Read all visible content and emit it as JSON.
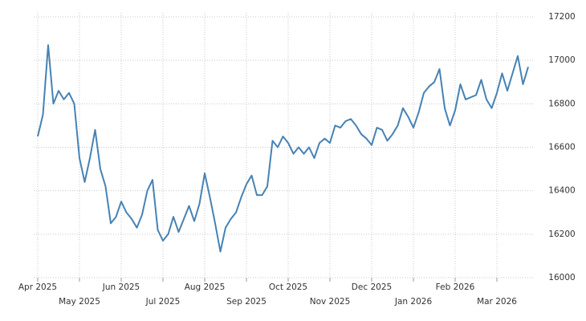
{
  "chart_data": {
    "type": "line",
    "color": "#4682b4",
    "grid": true,
    "categories": [
      "Apr 2025",
      null,
      null,
      null,
      null,
      null,
      null,
      null,
      "May 2025",
      null,
      null,
      null,
      null,
      null,
      null,
      null,
      "Jun 2025",
      null,
      null,
      null,
      null,
      null,
      null,
      null,
      "Jul 2025",
      null,
      null,
      null,
      null,
      null,
      null,
      null,
      "Aug 2025",
      null,
      null,
      null,
      null,
      null,
      null,
      null,
      "Sep 2025",
      null,
      null,
      null,
      null,
      null,
      null,
      null,
      "Oct 2025",
      null,
      null,
      null,
      null,
      null,
      null,
      null,
      "Nov 2025",
      null,
      null,
      null,
      null,
      null,
      null,
      null,
      "Dec 2025",
      null,
      null,
      null,
      null,
      null,
      null,
      null,
      "Jan 2026",
      null,
      null,
      null,
      null,
      null,
      null,
      null,
      "Feb 2026",
      null,
      null,
      null,
      null,
      null,
      null,
      null,
      "Mar 2026",
      null,
      null,
      null,
      null,
      null,
      null
    ],
    "values": [
      16650,
      16750,
      17070,
      16800,
      16860,
      16820,
      16850,
      16800,
      16550,
      16440,
      16550,
      16680,
      16500,
      16420,
      16250,
      16280,
      16350,
      16300,
      16270,
      16230,
      16290,
      16400,
      16450,
      16220,
      16170,
      16200,
      16280,
      16210,
      16270,
      16330,
      16260,
      16340,
      16480,
      16370,
      16250,
      16120,
      16230,
      16270,
      16300,
      16370,
      16430,
      16470,
      16380,
      16380,
      16420,
      16630,
      16600,
      16650,
      16620,
      16570,
      16600,
      16570,
      16600,
      16550,
      16620,
      16640,
      16620,
      16700,
      16690,
      16720,
      16730,
      16700,
      16660,
      16640,
      16610,
      16690,
      16680,
      16630,
      16660,
      16700,
      16780,
      16740,
      16690,
      16760,
      16850,
      16880,
      16900,
      16960,
      16780,
      16700,
      16770,
      16890,
      16820,
      16830,
      16840,
      16910,
      16820,
      16780,
      16850,
      16940,
      16860,
      16940,
      17020,
      16890,
      16970
    ],
    "ylim": [
      16000,
      17200
    ],
    "yticks": [
      16000,
      16200,
      16400,
      16600,
      16800,
      17000,
      17200
    ]
  }
}
